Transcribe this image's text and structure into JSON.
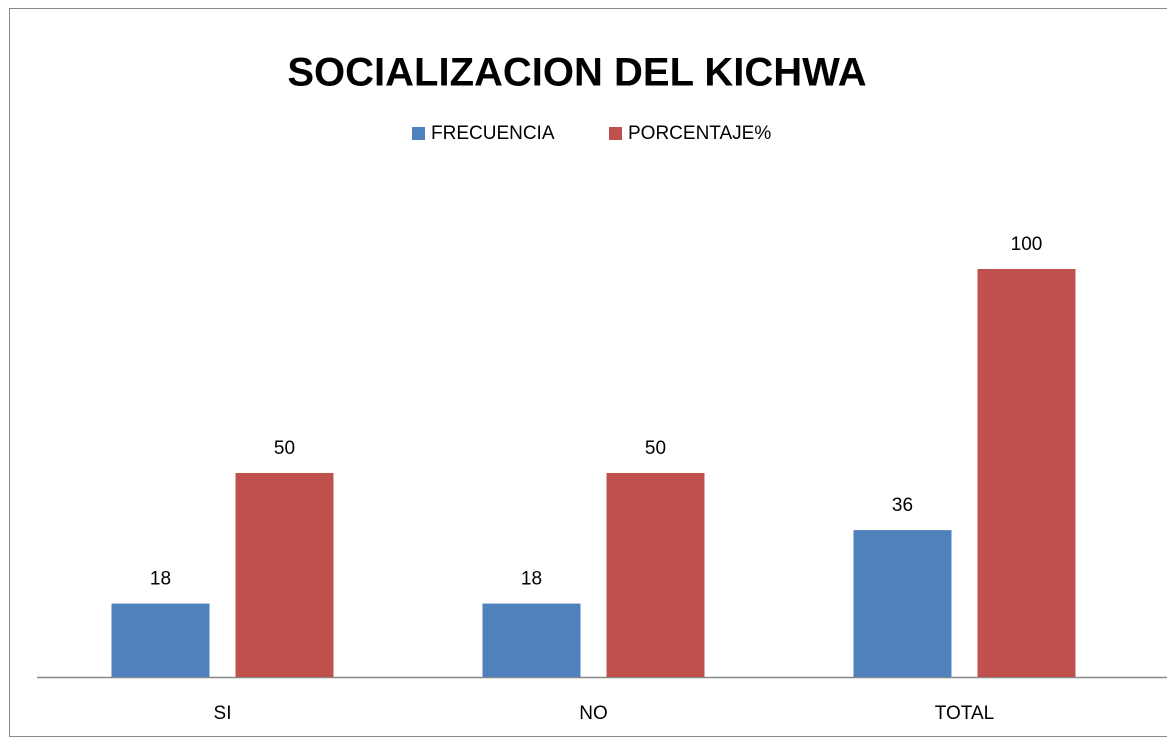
{
  "chart_data": {
    "type": "bar",
    "title": "SOCIALIZACION DEL KICHWA",
    "categories": [
      "SI",
      "NO",
      "TOTAL"
    ],
    "series": [
      {
        "name": "FRECUENCIA",
        "color": "#4f81bd",
        "values": [
          18,
          18,
          36
        ]
      },
      {
        "name": "PORCENTAJE%",
        "color": "#c0504d",
        "values": [
          50,
          50,
          100
        ]
      }
    ],
    "legend": "top"
  }
}
